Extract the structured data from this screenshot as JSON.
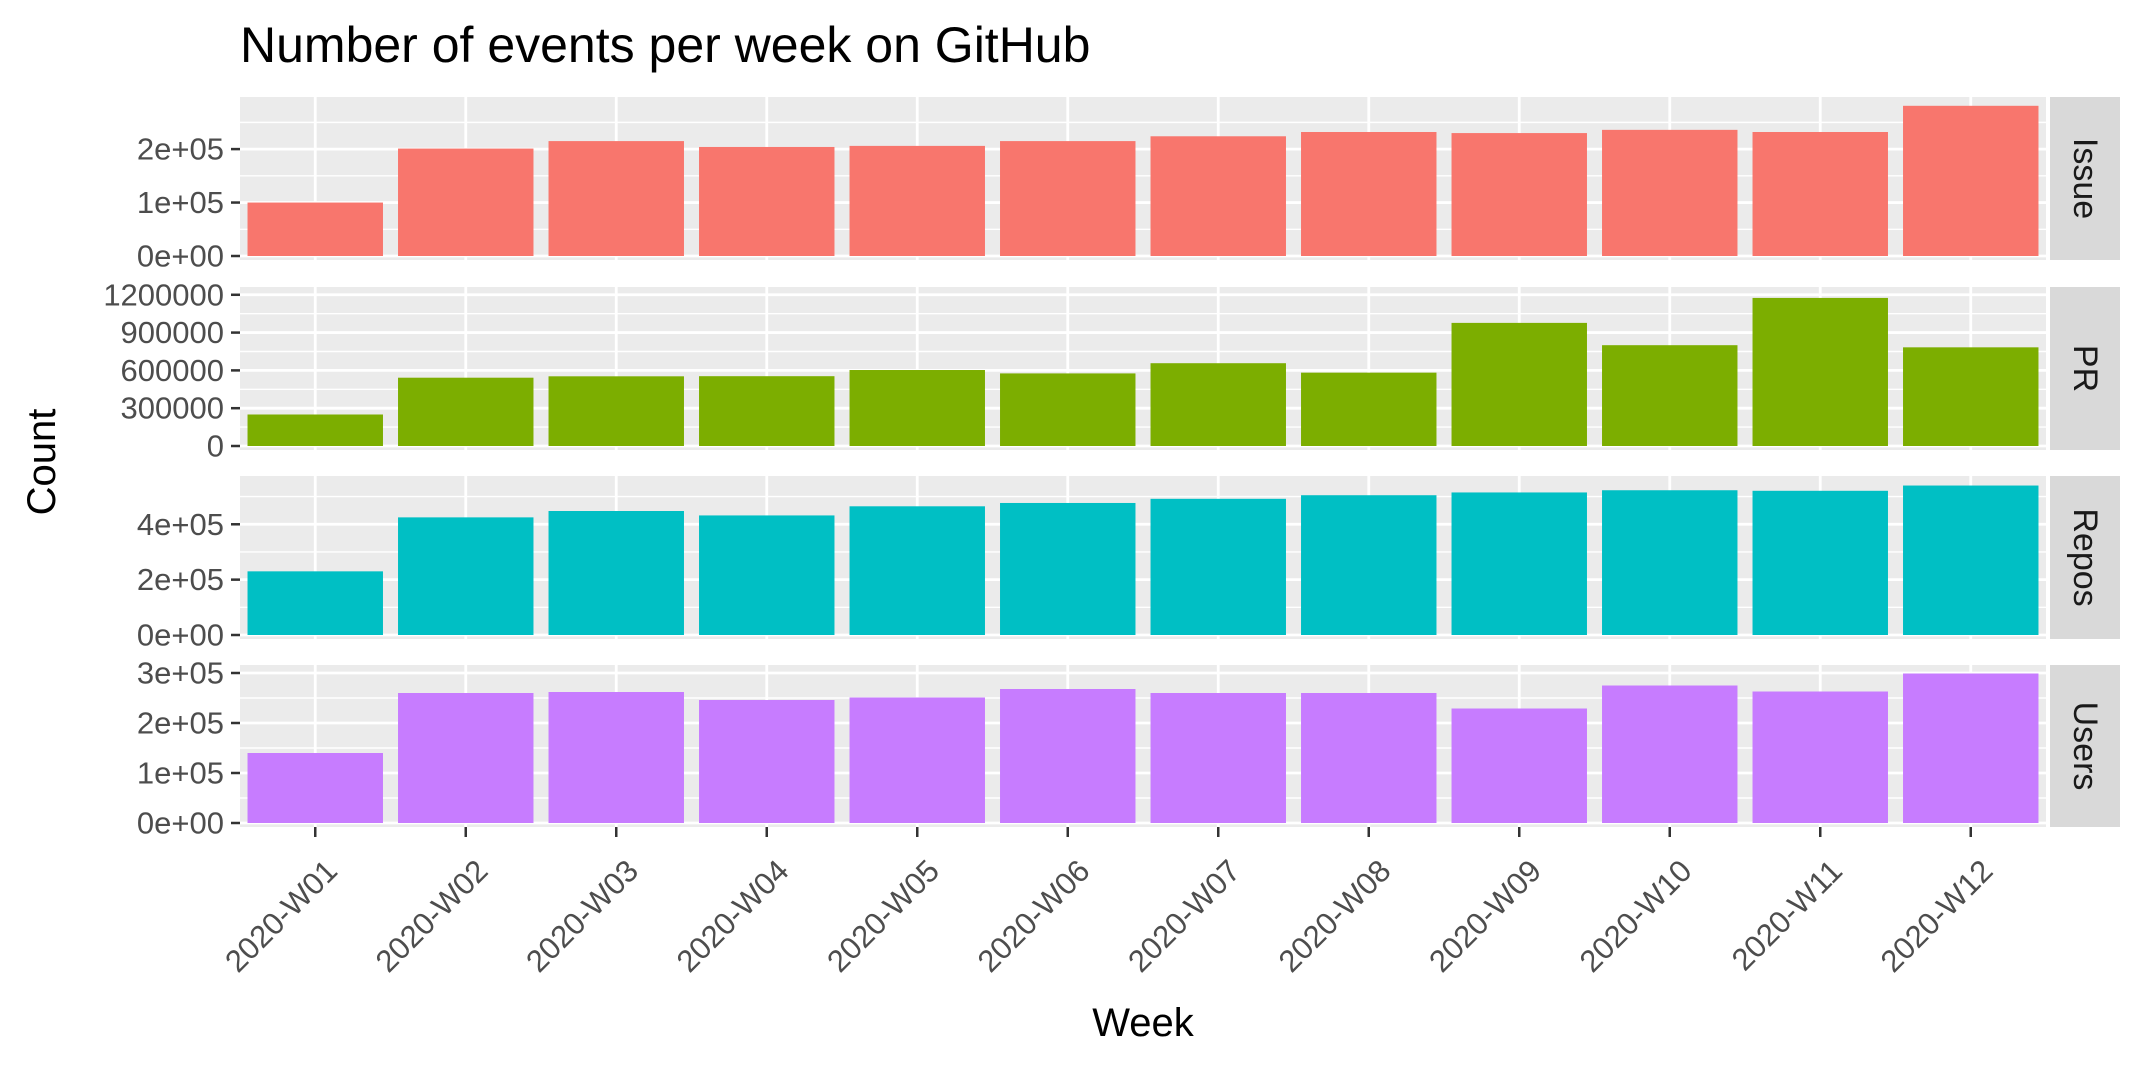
{
  "chart_data": {
    "type": "bar",
    "title": "Number of events per week on GitHub",
    "xlabel": "Week",
    "ylabel": "Count",
    "categories": [
      "2020-W01",
      "2020-W02",
      "2020-W03",
      "2020-W04",
      "2020-W05",
      "2020-W06",
      "2020-W07",
      "2020-W08",
      "2020-W09",
      "2020-W10",
      "2020-W11",
      "2020-W12"
    ],
    "panel_background": "#ebebeb",
    "grid": true,
    "legend": "none",
    "panels": [
      {
        "name": "Issue",
        "color": "#f8766d",
        "ylim": [
          0,
          290000
        ],
        "ticks": [
          0,
          100000,
          200000
        ],
        "tick_labels": [
          "0e+00",
          "1e+05",
          "2e+05"
        ],
        "values": [
          100000,
          201000,
          215000,
          204000,
          206000,
          215000,
          224000,
          232000,
          230000,
          236000,
          232000,
          281000
        ]
      },
      {
        "name": "PR",
        "color": "#7cae00",
        "ylim": [
          0,
          1230000
        ],
        "ticks": [
          0,
          300000,
          600000,
          900000,
          1200000
        ],
        "tick_labels": [
          "0",
          "300000",
          "600000",
          "900000",
          "1200000"
        ],
        "values": [
          250000,
          542000,
          553000,
          554000,
          603000,
          576000,
          657000,
          582000,
          977000,
          800000,
          1175000,
          783000
        ]
      },
      {
        "name": "Repos",
        "color": "#00bfc4",
        "ylim": [
          0,
          560000
        ],
        "ticks": [
          0,
          200000,
          400000
        ],
        "tick_labels": [
          "0e+00",
          "2e+05",
          "4e+05"
        ],
        "values": [
          230000,
          425000,
          448000,
          432000,
          465000,
          477000,
          492000,
          505000,
          515000,
          523000,
          521000,
          540000
        ]
      },
      {
        "name": "Users",
        "color": "#c77cff",
        "ylim": [
          0,
          308000
        ],
        "ticks": [
          0,
          100000,
          200000,
          300000
        ],
        "tick_labels": [
          "0e+00",
          "1e+05",
          "2e+05",
          "3e+05"
        ],
        "values": [
          140000,
          260000,
          262000,
          246000,
          251000,
          268000,
          260000,
          260000,
          229000,
          275000,
          263000,
          299000
        ]
      }
    ]
  }
}
